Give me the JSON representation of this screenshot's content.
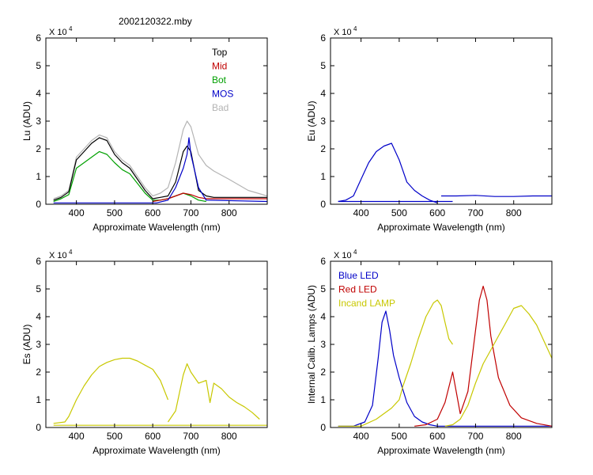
{
  "file_title": "2002120322.mby",
  "colors": {
    "top": "#000000",
    "mid": "#c00000",
    "bot": "#00a000",
    "mos": "#0000c8",
    "bad": "#b4b4b4",
    "blue_led": "#0000c8",
    "red_led": "#c00000",
    "incand": "#c8c800"
  },
  "chart_data": [
    {
      "id": "lu",
      "type": "line",
      "xlabel": "Approximate Wavelength (nm)",
      "ylabel": "Lu (ADU)",
      "exponent_label": "X 10",
      "exponent": "4",
      "xlim": [
        320,
        900
      ],
      "ylim": [
        0,
        6
      ],
      "xticks": [
        "400",
        "500",
        "600",
        "700",
        "800"
      ],
      "yticks": [
        "0",
        "1",
        "2",
        "3",
        "4",
        "5",
        "6"
      ],
      "legend": [
        "Top",
        "Mid",
        "Bot",
        "MOS",
        "Bad"
      ],
      "legend_placement": "top-right",
      "series": [
        {
          "name": "Bad",
          "color_key": "bad",
          "x": [
            340,
            360,
            380,
            400,
            420,
            440,
            460,
            480,
            500,
            520,
            540,
            560,
            580,
            600,
            620,
            640,
            660,
            680,
            690,
            700,
            720,
            740,
            760,
            800,
            850,
            900
          ],
          "y": [
            0.2,
            0.3,
            0.5,
            1.7,
            2.0,
            2.3,
            2.5,
            2.4,
            1.9,
            1.6,
            1.4,
            1.0,
            0.6,
            0.3,
            0.4,
            0.6,
            1.5,
            2.7,
            3.0,
            2.8,
            1.8,
            1.4,
            1.2,
            0.9,
            0.5,
            0.3
          ]
        },
        {
          "name": "Top",
          "color_key": "top",
          "x": [
            340,
            360,
            380,
            400,
            420,
            440,
            460,
            480,
            500,
            520,
            540,
            560,
            580,
            600,
            620,
            640,
            660,
            680,
            690,
            700,
            720,
            740,
            760,
            800,
            850,
            900
          ],
          "y": [
            0.15,
            0.25,
            0.45,
            1.6,
            1.9,
            2.2,
            2.4,
            2.3,
            1.8,
            1.5,
            1.3,
            0.9,
            0.5,
            0.2,
            0.25,
            0.3,
            0.8,
            1.9,
            2.1,
            1.9,
            0.5,
            0.3,
            0.25,
            0.25,
            0.25,
            0.25
          ]
        },
        {
          "name": "Bot",
          "color_key": "bot",
          "x": [
            340,
            360,
            380,
            400,
            420,
            440,
            460,
            480,
            500,
            520,
            540,
            560,
            580,
            600,
            620,
            640,
            660,
            680,
            700,
            720,
            740
          ],
          "y": [
            0.1,
            0.2,
            0.35,
            1.3,
            1.5,
            1.7,
            1.9,
            1.8,
            1.5,
            1.25,
            1.1,
            0.75,
            0.4,
            0.15,
            0.15,
            0.2,
            0.3,
            0.4,
            0.3,
            0.15,
            0.1
          ]
        },
        {
          "name": "Mid",
          "color_key": "mid",
          "x": [
            600,
            620,
            640,
            660,
            680,
            700,
            720,
            740,
            760,
            800,
            900
          ],
          "y": [
            0.1,
            0.15,
            0.2,
            0.3,
            0.4,
            0.35,
            0.25,
            0.2,
            0.2,
            0.2,
            0.2
          ]
        },
        {
          "name": "MOS",
          "color_key": "mos",
          "x": [
            340,
            400,
            500,
            600,
            610,
            640,
            660,
            680,
            690,
            695,
            700,
            710,
            720,
            740,
            900
          ],
          "y": [
            0.05,
            0.05,
            0.05,
            0.05,
            0.05,
            0.15,
            0.6,
            1.3,
            1.8,
            2.4,
            1.8,
            1.2,
            0.6,
            0.15,
            0.1
          ]
        }
      ]
    },
    {
      "id": "eu",
      "type": "line",
      "xlabel": "Approximate Wavelength (nm)",
      "ylabel": "Eu  (ADU)",
      "exponent_label": "X 10",
      "exponent": "4",
      "xlim": [
        320,
        900
      ],
      "ylim": [
        0,
        6
      ],
      "xticks": [
        "400",
        "500",
        "600",
        "700",
        "800"
      ],
      "yticks": [
        "0",
        "1",
        "2",
        "3",
        "4",
        "5",
        "6"
      ],
      "series": [
        {
          "name": "",
          "color_key": "mos",
          "x": [
            340,
            360,
            380,
            400,
            420,
            440,
            460,
            480,
            500,
            520,
            540,
            560,
            580,
            600
          ],
          "y": [
            0.1,
            0.15,
            0.3,
            0.9,
            1.5,
            1.9,
            2.1,
            2.2,
            1.6,
            0.8,
            0.5,
            0.3,
            0.15,
            0.05
          ]
        },
        {
          "name": "",
          "color_key": "mos",
          "x": [
            610,
            650,
            700,
            750,
            800,
            850,
            900
          ],
          "y": [
            0.3,
            0.3,
            0.32,
            0.28,
            0.28,
            0.3,
            0.3
          ]
        },
        {
          "name": "",
          "color_key": "mos",
          "x": [
            340,
            640
          ],
          "y": [
            0.1,
            0.1
          ]
        }
      ]
    },
    {
      "id": "es",
      "type": "line",
      "xlabel": "Approximate Wavelength (nm)",
      "ylabel": "Es  (ADU)",
      "exponent_label": "X 10",
      "exponent": "4",
      "xlim": [
        320,
        900
      ],
      "ylim": [
        0,
        6
      ],
      "xticks": [
        "400",
        "500",
        "600",
        "700",
        "800"
      ],
      "yticks": [
        "0",
        "1",
        "2",
        "3",
        "4",
        "5",
        "6"
      ],
      "series": [
        {
          "name": "",
          "color_key": "incand",
          "x": [
            340,
            370,
            380,
            400,
            420,
            440,
            460,
            480,
            500,
            520,
            540,
            560,
            580,
            600,
            620,
            640
          ],
          "y": [
            0.15,
            0.2,
            0.4,
            1.0,
            1.5,
            1.9,
            2.2,
            2.35,
            2.45,
            2.5,
            2.5,
            2.4,
            2.25,
            2.1,
            1.7,
            1.0
          ]
        },
        {
          "name": "",
          "color_key": "incand",
          "x": [
            640,
            660,
            680,
            690,
            700,
            720,
            740,
            750,
            760,
            780,
            800,
            820,
            840,
            860,
            880
          ],
          "y": [
            0.2,
            0.6,
            1.9,
            2.3,
            2.0,
            1.6,
            1.7,
            0.9,
            1.6,
            1.4,
            1.1,
            0.9,
            0.75,
            0.55,
            0.3
          ]
        },
        {
          "name": "",
          "color_key": "incand",
          "x": [
            340,
            900
          ],
          "y": [
            0.08,
            0.08
          ]
        }
      ]
    },
    {
      "id": "lamps",
      "type": "line",
      "xlabel": "Approximate Wavelength (nm)",
      "ylabel": "Internal Calib. Lamps (ADU)",
      "exponent_label": "X 10",
      "exponent": "4",
      "xlim": [
        320,
        900
      ],
      "ylim": [
        0,
        6
      ],
      "xticks": [
        "400",
        "500",
        "600",
        "700",
        "800"
      ],
      "yticks": [
        "0",
        "1",
        "2",
        "3",
        "4",
        "5",
        "6"
      ],
      "legend": [
        "Blue LED",
        "Red LED",
        "Incand LAMP"
      ],
      "legend_placement": "top-left",
      "series": [
        {
          "name": "Blue LED",
          "color_key": "blue_led",
          "x": [
            340,
            380,
            410,
            430,
            445,
            455,
            465,
            475,
            485,
            500,
            520,
            540,
            560,
            580,
            600,
            640,
            700,
            800,
            900
          ],
          "y": [
            0.05,
            0.05,
            0.2,
            0.8,
            2.5,
            3.8,
            4.2,
            3.5,
            2.6,
            1.8,
            0.9,
            0.4,
            0.2,
            0.1,
            0.05,
            0.05,
            0.05,
            0.05,
            0.05
          ]
        },
        {
          "name": "Red LED",
          "color_key": "red_led",
          "x": [
            540,
            570,
            600,
            620,
            640,
            660,
            680,
            700,
            710,
            720,
            730,
            740,
            760,
            790,
            820,
            860,
            900
          ],
          "y": [
            0.05,
            0.1,
            0.3,
            0.9,
            2.0,
            0.5,
            1.3,
            3.5,
            4.6,
            5.1,
            4.6,
            3.3,
            1.8,
            0.8,
            0.35,
            0.15,
            0.05
          ]
        },
        {
          "name": "Incand LAMP",
          "color_key": "incand",
          "x": [
            340,
            400,
            440,
            480,
            500,
            510,
            530,
            550,
            570,
            590,
            600,
            610,
            620,
            630,
            640
          ],
          "y": [
            0.05,
            0.05,
            0.3,
            0.7,
            1.0,
            1.5,
            2.3,
            3.2,
            4.0,
            4.5,
            4.6,
            4.4,
            3.8,
            3.2,
            3.0
          ]
        },
        {
          "name": "Incand LAMP",
          "color_key": "incand",
          "x": [
            620,
            640,
            660,
            680,
            700,
            720,
            740,
            760,
            780,
            800,
            820,
            840,
            860,
            880,
            900
          ],
          "y": [
            0.05,
            0.1,
            0.3,
            0.8,
            1.6,
            2.3,
            2.8,
            3.3,
            3.8,
            4.3,
            4.4,
            4.1,
            3.7,
            3.1,
            2.5
          ]
        }
      ]
    }
  ]
}
